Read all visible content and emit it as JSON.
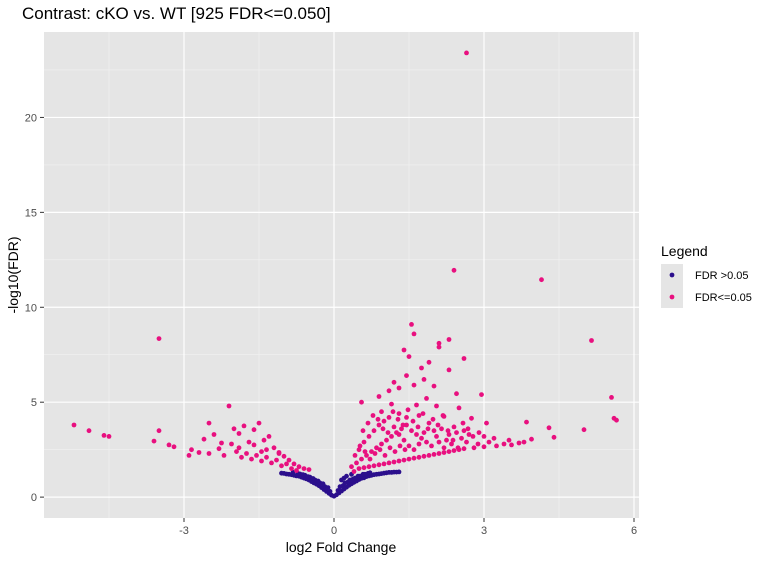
{
  "chart_data": {
    "type": "scatter",
    "title": "Contrast: cKO vs. WT  [925 FDR<=0.050]",
    "xlabel": "log2 Fold Change",
    "ylabel": "-log10(FDR)",
    "xlim": [
      -5.8,
      6.1
    ],
    "ylim": [
      -1.1,
      24.5
    ],
    "x_ticks": [
      -3,
      0,
      3,
      6
    ],
    "x_tick_labels": [
      "-3",
      "0",
      "3",
      "6"
    ],
    "y_ticks": [
      0,
      5,
      10,
      15,
      20
    ],
    "y_tick_labels": [
      "0",
      "5",
      "10",
      "15",
      "20"
    ],
    "grid": true,
    "legend": {
      "title": "Legend",
      "placement": "right"
    },
    "series": [
      {
        "name": "FDR >0.05",
        "color": "#2b0f8c",
        "points": [
          [
            0.0,
            0.05
          ],
          [
            -0.05,
            0.1
          ],
          [
            0.05,
            0.12
          ],
          [
            -0.1,
            0.2
          ],
          [
            0.1,
            0.22
          ],
          [
            -0.15,
            0.3
          ],
          [
            0.15,
            0.32
          ],
          [
            -0.2,
            0.4
          ],
          [
            0.2,
            0.42
          ],
          [
            -0.25,
            0.5
          ],
          [
            0.25,
            0.52
          ],
          [
            -0.3,
            0.6
          ],
          [
            0.3,
            0.62
          ],
          [
            -0.35,
            0.68
          ],
          [
            0.35,
            0.7
          ],
          [
            -0.4,
            0.75
          ],
          [
            0.4,
            0.78
          ],
          [
            -0.45,
            0.82
          ],
          [
            0.45,
            0.85
          ],
          [
            -0.5,
            0.9
          ],
          [
            0.5,
            0.93
          ],
          [
            -0.55,
            0.96
          ],
          [
            0.55,
            0.99
          ],
          [
            -0.6,
            1.0
          ],
          [
            0.6,
            1.02
          ],
          [
            -0.65,
            1.05
          ],
          [
            0.65,
            1.08
          ],
          [
            -0.7,
            1.1
          ],
          [
            0.7,
            1.12
          ],
          [
            -0.75,
            1.12
          ],
          [
            0.75,
            1.15
          ],
          [
            -0.8,
            1.15
          ],
          [
            0.8,
            1.18
          ],
          [
            -0.85,
            1.18
          ],
          [
            0.85,
            1.2
          ],
          [
            -0.9,
            1.2
          ],
          [
            0.9,
            1.22
          ],
          [
            -0.95,
            1.22
          ],
          [
            0.95,
            1.24
          ],
          [
            -1.0,
            1.25
          ],
          [
            1.0,
            1.26
          ],
          [
            -1.05,
            1.26
          ],
          [
            1.05,
            1.28
          ],
          [
            1.1,
            1.3
          ],
          [
            1.15,
            1.3
          ],
          [
            1.2,
            1.32
          ],
          [
            1.25,
            1.32
          ],
          [
            1.3,
            1.33
          ],
          [
            -0.08,
            0.3
          ],
          [
            0.08,
            0.35
          ],
          [
            -0.18,
            0.55
          ],
          [
            0.18,
            0.6
          ],
          [
            -0.28,
            0.75
          ],
          [
            0.28,
            0.8
          ],
          [
            -0.38,
            0.9
          ],
          [
            0.38,
            0.95
          ],
          [
            -0.48,
            1.05
          ],
          [
            0.48,
            1.1
          ],
          [
            -0.58,
            1.15
          ],
          [
            0.58,
            1.2
          ],
          [
            -0.68,
            1.22
          ],
          [
            0.68,
            1.25
          ],
          [
            0.12,
            0.55
          ],
          [
            0.22,
            0.75
          ],
          [
            0.32,
            0.9
          ],
          [
            0.42,
            1.0
          ],
          [
            0.52,
            1.1
          ],
          [
            0.62,
            1.2
          ],
          [
            0.72,
            1.28
          ],
          [
            -0.12,
            0.5
          ],
          [
            -0.22,
            0.7
          ],
          [
            -0.32,
            0.85
          ],
          [
            -0.42,
            0.98
          ],
          [
            -0.52,
            1.08
          ],
          [
            -0.62,
            1.18
          ],
          [
            -0.72,
            1.25
          ],
          [
            -0.82,
            1.3
          ],
          [
            0.15,
            0.9
          ],
          [
            0.25,
            1.1
          ],
          [
            0.35,
            1.2
          ],
          [
            0.2,
            1.0
          ]
        ]
      },
      {
        "name": "FDR<=0.05",
        "color": "#e8107f",
        "points": [
          [
            2.65,
            23.4
          ],
          [
            2.4,
            11.95
          ],
          [
            4.15,
            11.45
          ],
          [
            1.55,
            9.1
          ],
          [
            5.15,
            8.25
          ],
          [
            -3.5,
            8.35
          ],
          [
            1.6,
            8.6
          ],
          [
            2.1,
            8.1
          ],
          [
            2.3,
            8.3
          ],
          [
            2.1,
            7.9
          ],
          [
            1.4,
            7.75
          ],
          [
            1.5,
            7.4
          ],
          [
            2.6,
            7.3
          ],
          [
            1.9,
            7.1
          ],
          [
            1.75,
            6.8
          ],
          [
            2.3,
            6.7
          ],
          [
            1.8,
            6.2
          ],
          [
            1.45,
            6.4
          ],
          [
            1.2,
            6.05
          ],
          [
            1.6,
            5.9
          ],
          [
            2.0,
            5.85
          ],
          [
            1.1,
            5.6
          ],
          [
            1.3,
            5.75
          ],
          [
            2.45,
            5.45
          ],
          [
            2.95,
            5.4
          ],
          [
            5.55,
            5.25
          ],
          [
            0.55,
            5.0
          ],
          [
            0.9,
            5.3
          ],
          [
            1.15,
            4.9
          ],
          [
            1.65,
            4.85
          ],
          [
            2.05,
            4.8
          ],
          [
            2.5,
            4.7
          ],
          [
            1.85,
            5.2
          ],
          [
            0.95,
            4.5
          ],
          [
            1.3,
            4.4
          ],
          [
            1.7,
            4.3
          ],
          [
            1.45,
            4.2
          ],
          [
            2.2,
            4.25
          ],
          [
            2.75,
            4.15
          ],
          [
            3.05,
            3.9
          ],
          [
            3.85,
            3.95
          ],
          [
            5.6,
            4.15
          ],
          [
            5.65,
            4.05
          ],
          [
            4.3,
            3.65
          ],
          [
            5.0,
            3.55
          ],
          [
            4.4,
            3.15
          ],
          [
            3.95,
            3.05
          ],
          [
            3.7,
            2.85
          ],
          [
            3.55,
            2.75
          ],
          [
            3.4,
            2.8
          ],
          [
            3.25,
            2.7
          ],
          [
            3.1,
            2.9
          ],
          [
            -5.2,
            3.8
          ],
          [
            -4.9,
            3.5
          ],
          [
            -4.6,
            3.25
          ],
          [
            -4.5,
            3.2
          ],
          [
            -3.6,
            2.95
          ],
          [
            -3.5,
            3.5
          ],
          [
            -3.3,
            2.75
          ],
          [
            -3.2,
            2.65
          ],
          [
            -2.85,
            2.5
          ],
          [
            -2.6,
            3.05
          ],
          [
            -2.5,
            3.9
          ],
          [
            -2.1,
            4.8
          ],
          [
            -2.4,
            3.3
          ],
          [
            -2.25,
            2.85
          ],
          [
            -2.0,
            3.6
          ],
          [
            -1.9,
            3.35
          ],
          [
            -1.8,
            3.75
          ],
          [
            -1.6,
            3.55
          ],
          [
            -1.5,
            3.9
          ],
          [
            -1.4,
            3.0
          ],
          [
            -1.7,
            2.9
          ],
          [
            -1.3,
            3.2
          ],
          [
            -1.2,
            2.6
          ],
          [
            -1.1,
            2.35
          ],
          [
            -1.0,
            2.15
          ],
          [
            -0.9,
            1.95
          ],
          [
            -0.8,
            1.75
          ],
          [
            -0.7,
            1.6
          ],
          [
            -0.6,
            1.5
          ],
          [
            -0.5,
            1.45
          ],
          [
            -1.95,
            2.4
          ],
          [
            -1.75,
            2.3
          ],
          [
            -1.55,
            2.2
          ],
          [
            -1.35,
            2.1
          ],
          [
            -1.15,
            1.95
          ],
          [
            -0.95,
            1.75
          ],
          [
            -2.3,
            2.55
          ],
          [
            -2.7,
            2.35
          ],
          [
            -2.9,
            2.2
          ],
          [
            -2.5,
            2.3
          ],
          [
            -2.2,
            2.2
          ],
          [
            -1.85,
            2.1
          ],
          [
            -1.65,
            2.0
          ],
          [
            -1.45,
            1.9
          ],
          [
            -1.25,
            1.8
          ],
          [
            -1.05,
            1.65
          ],
          [
            -0.85,
            1.5
          ],
          [
            -0.75,
            1.4
          ],
          [
            -1.9,
            2.6
          ],
          [
            -1.6,
            2.75
          ],
          [
            -1.35,
            2.5
          ],
          [
            -1.1,
            2.3
          ],
          [
            -2.05,
            2.8
          ],
          [
            -1.45,
            2.4
          ],
          [
            0.4,
            1.35
          ],
          [
            0.5,
            1.5
          ],
          [
            0.6,
            1.55
          ],
          [
            0.7,
            1.6
          ],
          [
            0.8,
            1.65
          ],
          [
            0.9,
            1.7
          ],
          [
            1.0,
            1.75
          ],
          [
            1.1,
            1.8
          ],
          [
            1.2,
            1.85
          ],
          [
            1.3,
            1.9
          ],
          [
            1.4,
            1.95
          ],
          [
            1.5,
            2.0
          ],
          [
            1.6,
            2.05
          ],
          [
            1.7,
            2.1
          ],
          [
            1.8,
            2.15
          ],
          [
            1.9,
            2.2
          ],
          [
            2.0,
            2.25
          ],
          [
            2.1,
            2.3
          ],
          [
            2.2,
            2.35
          ],
          [
            2.3,
            2.4
          ],
          [
            2.4,
            2.45
          ],
          [
            2.5,
            2.5
          ],
          [
            2.6,
            2.55
          ],
          [
            2.8,
            2.6
          ],
          [
            3.0,
            2.65
          ],
          [
            0.45,
            1.8
          ],
          [
            0.55,
            2.0
          ],
          [
            0.65,
            2.2
          ],
          [
            0.75,
            2.4
          ],
          [
            0.85,
            2.6
          ],
          [
            0.95,
            2.8
          ],
          [
            1.05,
            3.0
          ],
          [
            1.15,
            3.2
          ],
          [
            1.25,
            3.4
          ],
          [
            1.35,
            3.6
          ],
          [
            1.45,
            3.8
          ],
          [
            1.55,
            3.5
          ],
          [
            1.65,
            3.3
          ],
          [
            1.75,
            3.1
          ],
          [
            1.85,
            2.9
          ],
          [
            1.95,
            2.7
          ],
          [
            2.05,
            3.2
          ],
          [
            2.15,
            3.6
          ],
          [
            2.25,
            3.0
          ],
          [
            2.35,
            2.8
          ],
          [
            2.45,
            3.4
          ],
          [
            2.55,
            3.1
          ],
          [
            2.65,
            2.9
          ],
          [
            2.7,
            3.3
          ],
          [
            0.5,
            2.5
          ],
          [
            0.6,
            2.9
          ],
          [
            0.7,
            3.2
          ],
          [
            0.8,
            3.5
          ],
          [
            0.9,
            3.8
          ],
          [
            1.0,
            4.0
          ],
          [
            1.1,
            4.2
          ],
          [
            1.2,
            3.7
          ],
          [
            1.3,
            3.3
          ],
          [
            1.4,
            3.0
          ],
          [
            1.5,
            2.7
          ],
          [
            1.6,
            2.5
          ],
          [
            1.7,
            2.8
          ],
          [
            1.8,
            3.4
          ],
          [
            1.9,
            3.9
          ],
          [
            2.0,
            3.5
          ],
          [
            2.1,
            2.9
          ],
          [
            2.2,
            2.6
          ],
          [
            2.3,
            3.3
          ],
          [
            2.4,
            3.7
          ],
          [
            2.6,
            3.5
          ],
          [
            0.35,
            1.6
          ],
          [
            0.42,
            2.2
          ],
          [
            0.52,
            2.7
          ],
          [
            0.62,
            2.4
          ],
          [
            0.72,
            2.0
          ],
          [
            0.82,
            2.3
          ],
          [
            0.92,
            2.5
          ],
          [
            1.02,
            2.2
          ],
          [
            1.12,
            2.6
          ],
          [
            1.22,
            2.4
          ],
          [
            1.32,
            2.7
          ],
          [
            1.42,
            2.5
          ],
          [
            0.58,
            3.5
          ],
          [
            0.68,
            3.9
          ],
          [
            0.78,
            4.3
          ],
          [
            0.88,
            4.1
          ],
          [
            0.98,
            3.6
          ],
          [
            1.08,
            3.4
          ],
          [
            1.18,
            4.5
          ],
          [
            1.28,
            4.1
          ],
          [
            1.38,
            3.8
          ],
          [
            1.48,
            4.6
          ],
          [
            1.58,
            4.0
          ],
          [
            1.68,
            3.7
          ],
          [
            1.78,
            4.4
          ],
          [
            1.88,
            3.6
          ],
          [
            1.98,
            4.1
          ],
          [
            2.08,
            3.8
          ],
          [
            2.18,
            4.3
          ],
          [
            2.28,
            3.5
          ],
          [
            2.38,
            3.0
          ],
          [
            2.48,
            2.6
          ],
          [
            2.58,
            3.9
          ],
          [
            2.68,
            3.6
          ],
          [
            2.78,
            3.2
          ],
          [
            2.88,
            2.8
          ],
          [
            3.2,
            3.1
          ],
          [
            3.5,
            3.0
          ],
          [
            3.8,
            2.9
          ],
          [
            2.9,
            3.4
          ],
          [
            3.0,
            3.2
          ]
        ]
      }
    ]
  }
}
